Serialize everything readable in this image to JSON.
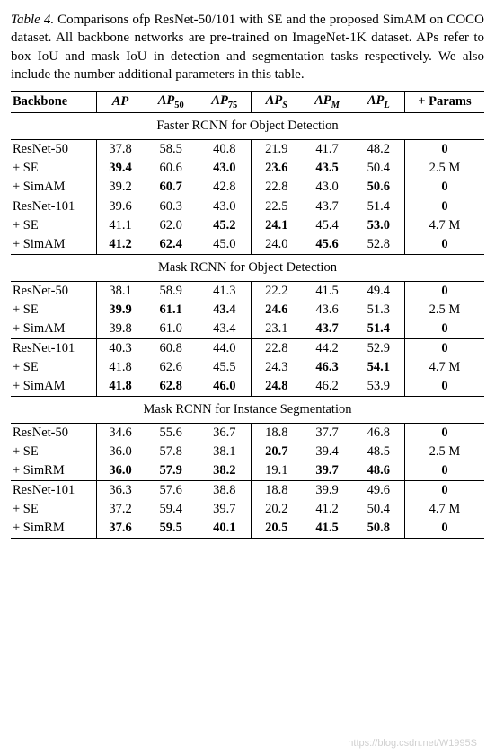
{
  "caption": {
    "label": "Table 4.",
    "text": " Comparisons ofp ResNet-50/101 with SE and the proposed SimAM on COCO dataset. All backbone networks are pre-trained on ImageNet-1K dataset. APs refer to box IoU and mask IoU in detection and segmentation tasks respectively. We also include the number additional parameters in this table."
  },
  "columns": {
    "backbone": "Backbone",
    "ap": "AP",
    "ap50_pre": "AP",
    "ap50_sub": "50",
    "ap75_pre": "AP",
    "ap75_sub": "75",
    "aps_pre": "AP",
    "aps_sub": "S",
    "apm_pre": "AP",
    "apm_sub": "M",
    "apl_pre": "AP",
    "apl_sub": "L",
    "params": "+ Params"
  },
  "sections": {
    "s1": "Faster RCNN for Object Detection",
    "s2": "Mask RCNN for Object Detection",
    "s3": "Mask RCNN for Instance Segmentation"
  },
  "t": {
    "s1": {
      "r1": {
        "b": "ResNet-50",
        "ap": "37.8",
        "a50": "58.5",
        "a75": "40.8",
        "as": "21.9",
        "am": "41.7",
        "al": "48.2",
        "p": "0"
      },
      "r2": {
        "b": "+ SE",
        "ap": "39.4",
        "a50": "60.6",
        "a75": "43.0",
        "as": "23.6",
        "am": "43.5",
        "al": "50.4",
        "p": "2.5 M"
      },
      "r3": {
        "b": "+ SimAM",
        "ap": "39.2",
        "a50": "60.7",
        "a75": "42.8",
        "as": "22.8",
        "am": "43.0",
        "al": "50.6",
        "p": "0"
      },
      "r4": {
        "b": "ResNet-101",
        "ap": "39.6",
        "a50": "60.3",
        "a75": "43.0",
        "as": "22.5",
        "am": "43.7",
        "al": "51.4",
        "p": "0"
      },
      "r5": {
        "b": "+ SE",
        "ap": "41.1",
        "a50": "62.0",
        "a75": "45.2",
        "as": "24.1",
        "am": "45.4",
        "al": "53.0",
        "p": "4.7 M"
      },
      "r6": {
        "b": "+ SimAM",
        "ap": "41.2",
        "a50": "62.4",
        "a75": "45.0",
        "as": "24.0",
        "am": "45.6",
        "al": "52.8",
        "p": "0"
      }
    },
    "s2": {
      "r1": {
        "b": "ResNet-50",
        "ap": "38.1",
        "a50": "58.9",
        "a75": "41.3",
        "as": "22.2",
        "am": "41.5",
        "al": "49.4",
        "p": "0"
      },
      "r2": {
        "b": "+ SE",
        "ap": "39.9",
        "a50": "61.1",
        "a75": "43.4",
        "as": "24.6",
        "am": "43.6",
        "al": "51.3",
        "p": "2.5 M"
      },
      "r3": {
        "b": "+ SimAM",
        "ap": "39.8",
        "a50": "61.0",
        "a75": "43.4",
        "as": "23.1",
        "am": "43.7",
        "al": "51.4",
        "p": "0"
      },
      "r4": {
        "b": "ResNet-101",
        "ap": "40.3",
        "a50": "60.8",
        "a75": "44.0",
        "as": "22.8",
        "am": "44.2",
        "al": "52.9",
        "p": "0"
      },
      "r5": {
        "b": "+ SE",
        "ap": "41.8",
        "a50": "62.6",
        "a75": "45.5",
        "as": "24.3",
        "am": "46.3",
        "al": "54.1",
        "p": "4.7 M"
      },
      "r6": {
        "b": "+ SimAM",
        "ap": "41.8",
        "a50": "62.8",
        "a75": "46.0",
        "as": "24.8",
        "am": "46.2",
        "al": "53.9",
        "p": "0"
      }
    },
    "s3": {
      "r1": {
        "b": "ResNet-50",
        "ap": "34.6",
        "a50": "55.6",
        "a75": "36.7",
        "as": "18.8",
        "am": "37.7",
        "al": "46.8",
        "p": "0"
      },
      "r2": {
        "b": "+ SE",
        "ap": "36.0",
        "a50": "57.8",
        "a75": "38.1",
        "as": "20.7",
        "am": "39.4",
        "al": "48.5",
        "p": "2.5 M"
      },
      "r3": {
        "b": "+ SimRM",
        "ap": "36.0",
        "a50": "57.9",
        "a75": "38.2",
        "as": "19.1",
        "am": "39.7",
        "al": "48.6",
        "p": "0"
      },
      "r4": {
        "b": "ResNet-101",
        "ap": "36.3",
        "a50": "57.6",
        "a75": "38.8",
        "as": "18.8",
        "am": "39.9",
        "al": "49.6",
        "p": "0"
      },
      "r5": {
        "b": "+ SE",
        "ap": "37.2",
        "a50": "59.4",
        "a75": "39.7",
        "as": "20.2",
        "am": "41.2",
        "al": "50.4",
        "p": "4.7 M"
      },
      "r6": {
        "b": "+ SimRM",
        "ap": "37.6",
        "a50": "59.5",
        "a75": "40.1",
        "as": "20.5",
        "am": "41.5",
        "al": "50.8",
        "p": "0"
      }
    }
  },
  "bold": {
    "s1": {
      "r1": {
        "p": true
      },
      "r2": {
        "ap": true,
        "a75": true,
        "as": true,
        "am": true
      },
      "r3": {
        "a50": true,
        "al": true,
        "p": true
      },
      "r4": {
        "p": true
      },
      "r5": {
        "a75": true,
        "as": true,
        "al": true
      },
      "r6": {
        "ap": true,
        "a50": true,
        "am": true,
        "p": true
      }
    },
    "s2": {
      "r1": {
        "p": true
      },
      "r2": {
        "ap": true,
        "a50": true,
        "a75": true,
        "as": true
      },
      "r3": {
        "am": true,
        "al": true,
        "p": true
      },
      "r4": {
        "p": true
      },
      "r5": {
        "am": true,
        "al": true
      },
      "r6": {
        "ap": true,
        "a50": true,
        "a75": true,
        "as": true,
        "p": true
      }
    },
    "s3": {
      "r1": {
        "p": true
      },
      "r2": {
        "as": true
      },
      "r3": {
        "ap": true,
        "a50": true,
        "a75": true,
        "am": true,
        "al": true,
        "p": true
      },
      "r4": {
        "p": true
      },
      "r5": {},
      "r6": {
        "ap": true,
        "a50": true,
        "a75": true,
        "as": true,
        "am": true,
        "al": true,
        "p": true
      }
    }
  },
  "watermark": "https://blog.csdn.net/W1995S"
}
